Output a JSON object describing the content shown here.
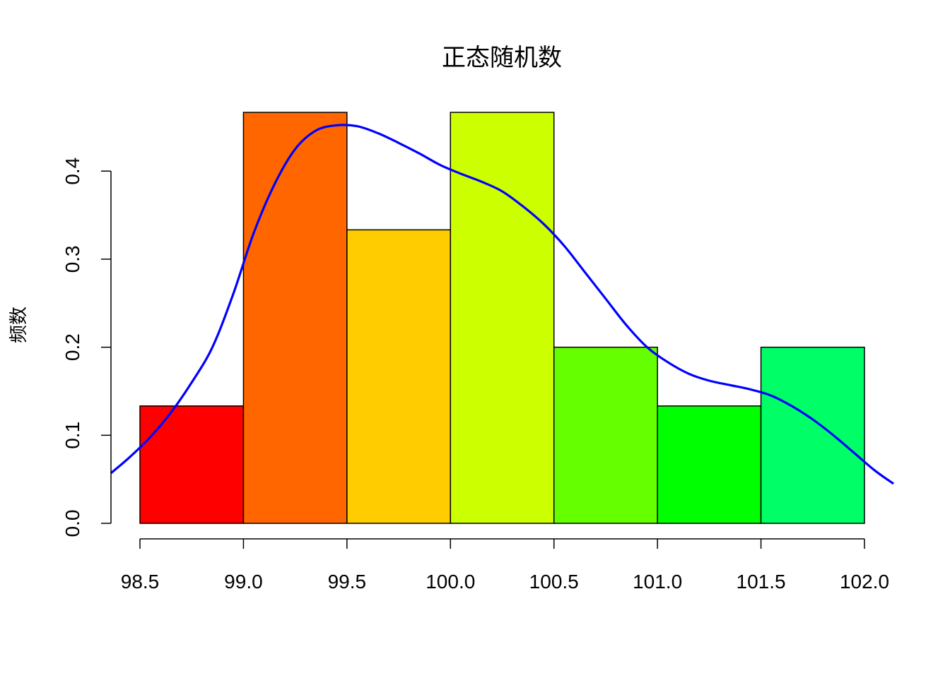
{
  "chart_data": {
    "type": "bar",
    "title": "正态随机数",
    "xlabel": "",
    "ylabel": "频数",
    "x_ticks": [
      "98.5",
      "99.0",
      "99.5",
      "100.0",
      "100.5",
      "101.0",
      "101.5",
      "102.0"
    ],
    "y_ticks": [
      "0.0",
      "0.1",
      "0.2",
      "0.3",
      "0.4"
    ],
    "xlim": [
      98.36,
      102.14
    ],
    "ylim": [
      0,
      0.47
    ],
    "bins": [
      {
        "from": 98.5,
        "to": 99.0,
        "value": 0.1333,
        "color": "#FF0000"
      },
      {
        "from": 99.0,
        "to": 99.5,
        "value": 0.4667,
        "color": "#FF6600"
      },
      {
        "from": 99.5,
        "to": 100.0,
        "value": 0.3333,
        "color": "#FFCC00"
      },
      {
        "from": 100.0,
        "to": 100.5,
        "value": 0.4667,
        "color": "#CCFF00"
      },
      {
        "from": 100.5,
        "to": 101.0,
        "value": 0.2,
        "color": "#66FF00"
      },
      {
        "from": 101.0,
        "to": 101.5,
        "value": 0.1333,
        "color": "#00FF00"
      },
      {
        "from": 101.5,
        "to": 102.0,
        "value": 0.2,
        "color": "#00FF66"
      }
    ],
    "density_curve": {
      "color": "#0000FF",
      "x": [
        98.36,
        98.45,
        98.55,
        98.65,
        98.75,
        98.85,
        98.95,
        99.05,
        99.15,
        99.25,
        99.35,
        99.45,
        99.55,
        99.65,
        99.75,
        99.85,
        99.95,
        100.05,
        100.15,
        100.25,
        100.35,
        100.45,
        100.55,
        100.65,
        100.75,
        100.85,
        100.95,
        101.05,
        101.15,
        101.25,
        101.35,
        101.45,
        101.55,
        101.65,
        101.75,
        101.85,
        101.95,
        102.05,
        102.14
      ],
      "y": [
        0.057,
        0.075,
        0.098,
        0.126,
        0.16,
        0.2,
        0.26,
        0.33,
        0.385,
        0.425,
        0.446,
        0.452,
        0.451,
        0.443,
        0.432,
        0.42,
        0.407,
        0.397,
        0.388,
        0.377,
        0.36,
        0.34,
        0.315,
        0.285,
        0.255,
        0.225,
        0.2,
        0.183,
        0.17,
        0.162,
        0.157,
        0.152,
        0.145,
        0.133,
        0.118,
        0.1,
        0.08,
        0.06,
        0.045
      ]
    }
  }
}
